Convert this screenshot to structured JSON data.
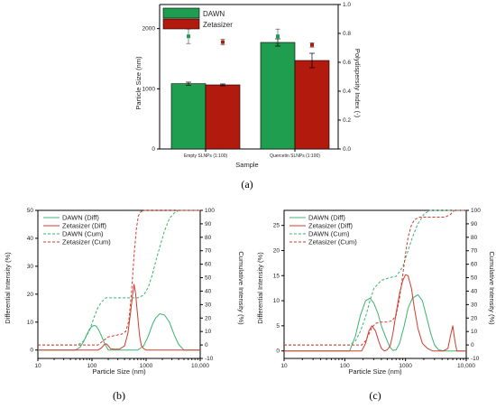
{
  "colors": {
    "dawn": "#1e9e4e",
    "zetasizer": "#b21a0e",
    "dawn_line": "#3cb371",
    "zeta_line": "#d13b2c"
  },
  "panel_labels": [
    "(a)",
    "(b)",
    "(c)"
  ],
  "chart_data": [
    {
      "panel": "(a)",
      "type": "bar",
      "title": "",
      "xlabel": "Sample",
      "ylabel": "Particle Size (nm)",
      "y2label": "Polydispersity Index (-)",
      "categories": [
        "Empty SLNPs (1:100)",
        "Quercetin SLNPs (1:100)"
      ],
      "ylim": [
        0,
        2400
      ],
      "yticks": [
        0,
        1000,
        2000
      ],
      "y2lim": [
        0,
        1.0
      ],
      "y2ticks": [
        "0.0",
        "0.2",
        "0.4",
        "0.6",
        "0.8",
        "1.0"
      ],
      "legend_position": "top-left",
      "series": [
        {
          "name": "DAWN",
          "values": [
            1085,
            1770
          ],
          "errors": [
            25,
            60
          ],
          "pdi": [
            0.78,
            0.78
          ],
          "pdi_errors": [
            0.05,
            0.05
          ]
        },
        {
          "name": "Zetasizer",
          "values": [
            1065,
            1470
          ],
          "errors": [
            15,
            120
          ],
          "pdi": [
            0.74,
            0.72
          ],
          "pdi_errors": [
            0.02,
            0.015
          ]
        }
      ]
    },
    {
      "panel": "(b)",
      "type": "line",
      "xscale": "log",
      "xlim": [
        10,
        10000
      ],
      "xticks": [
        "10",
        "100",
        "1000",
        "10,000"
      ],
      "xlabel": "Particle Size (nm)",
      "ylabel": "Differential Intensity (%)",
      "y2label": "Cumulative Intensity (%)",
      "ylim": [
        -3,
        50
      ],
      "yticks": [
        0,
        10,
        20,
        30,
        40,
        50
      ],
      "y2lim": [
        -10,
        100
      ],
      "y2ticks": [
        -10,
        0,
        10,
        20,
        30,
        40,
        50,
        60,
        70,
        80,
        90,
        100
      ],
      "legend_position": "top-left",
      "series": [
        {
          "name": "DAWN (Diff)",
          "axis": "left",
          "style": "solid",
          "color": "dawn",
          "x": [
            10,
            50,
            60,
            70,
            80,
            90,
            100,
            110,
            120,
            135,
            150,
            170,
            200,
            300,
            500,
            700,
            900,
            1100,
            1300,
            1500,
            1800,
            2200,
            2700,
            3300,
            4000,
            5000,
            10000
          ],
          "y": [
            0,
            0,
            1.0,
            3.0,
            5.5,
            7.5,
            8.5,
            8.8,
            8.5,
            7.0,
            5.0,
            2.5,
            0,
            0,
            0,
            0,
            1.5,
            5.0,
            9.0,
            11.5,
            13.0,
            12.5,
            10.0,
            5.5,
            2.0,
            0,
            0
          ]
        },
        {
          "name": "Zetasizer (Diff)",
          "axis": "left",
          "style": "solid",
          "color": "zetasizer",
          "x": [
            10,
            130,
            150,
            170,
            185,
            200,
            220,
            260,
            320,
            400,
            460,
            520,
            560,
            600,
            640,
            700,
            760,
            820,
            900,
            1000,
            1200,
            10000
          ],
          "y": [
            0,
            0,
            0.8,
            2.0,
            2.2,
            1.5,
            0.5,
            0.3,
            0.3,
            1.5,
            6.0,
            14.0,
            19.5,
            23.5,
            20.0,
            12.0,
            5.0,
            1.5,
            0.5,
            0,
            0,
            0
          ]
        },
        {
          "name": "DAWN (Cum)",
          "axis": "right",
          "style": "dashed",
          "color": "dawn",
          "x": [
            10,
            50,
            60,
            70,
            80,
            90,
            100,
            110,
            130,
            150,
            180,
            200,
            300,
            500,
            700,
            900,
            1100,
            1300,
            1500,
            1800,
            2200,
            2700,
            3300,
            4000,
            5000,
            10000
          ],
          "y": [
            0,
            0,
            1,
            3,
            7,
            11,
            16,
            21,
            28,
            32,
            35,
            35,
            35,
            35,
            35,
            37,
            43,
            52,
            62,
            73,
            85,
            94,
            98,
            100,
            100,
            100
          ]
        },
        {
          "name": "Zetasizer (Cum)",
          "axis": "right",
          "style": "dashed",
          "color": "zetasizer",
          "x": [
            10,
            130,
            160,
            200,
            260,
            350,
            420,
            480,
            540,
            600,
            660,
            720,
            800,
            900,
            1000,
            10000
          ],
          "y": [
            0,
            0,
            3,
            6,
            7,
            8,
            10,
            18,
            40,
            67,
            86,
            96,
            99,
            100,
            100,
            100
          ]
        }
      ]
    },
    {
      "panel": "(c)",
      "type": "line",
      "xscale": "log",
      "xlim": [
        10,
        10000
      ],
      "xticks": [
        "10",
        "100",
        "1000",
        "10,000"
      ],
      "xlabel": "Particle Size (nm)",
      "ylabel": "Differential Intensity (%)",
      "y2label": "Cumulative Intensity (%)",
      "ylim": [
        -1.5,
        28
      ],
      "yticks": [
        0,
        5,
        10,
        15,
        20,
        25
      ],
      "y2lim": [
        -10,
        100
      ],
      "y2ticks": [
        -10,
        0,
        10,
        20,
        30,
        40,
        50,
        60,
        70,
        80,
        90,
        100
      ],
      "legend_position": "top-left",
      "series": [
        {
          "name": "DAWN (Diff)",
          "axis": "left",
          "style": "solid",
          "color": "dawn",
          "x": [
            10,
            120,
            150,
            180,
            220,
            260,
            300,
            350,
            400,
            480,
            550,
            620,
            700,
            800,
            950,
            1100,
            1300,
            1600,
            1900,
            2200,
            2600,
            3000,
            3500,
            4200,
            5000,
            10000
          ],
          "y": [
            0,
            0,
            3.0,
            7.0,
            10.0,
            10.5,
            9.5,
            7.5,
            5.0,
            2.5,
            0.8,
            0.1,
            0.2,
            1.5,
            5.0,
            8.5,
            10.5,
            11.2,
            10.0,
            7.0,
            3.5,
            1.2,
            0.2,
            0,
            0,
            0
          ]
        },
        {
          "name": "Zetasizer (Diff)",
          "axis": "left",
          "style": "solid",
          "color": "zetasizer",
          "x": [
            10,
            190,
            220,
            250,
            280,
            320,
            360,
            400,
            450,
            500,
            560,
            620,
            700,
            800,
            900,
            1000,
            1100,
            1250,
            1400,
            1600,
            1900,
            2300,
            2800,
            3400,
            4200,
            5000,
            5500,
            6000,
            6500,
            7000,
            10000
          ],
          "y": [
            0,
            0,
            1.5,
            4.0,
            5.0,
            4.0,
            2.0,
            0.5,
            0,
            0.2,
            1.0,
            3.5,
            7.5,
            11.5,
            14.0,
            15.2,
            15.0,
            12.5,
            8.5,
            4.5,
            1.5,
            0.5,
            0,
            0,
            0,
            0.5,
            3.0,
            5.0,
            2.0,
            0,
            0
          ]
        },
        {
          "name": "DAWN (Cum)",
          "axis": "right",
          "style": "dashed",
          "color": "dawn",
          "x": [
            10,
            120,
            150,
            180,
            220,
            260,
            300,
            400,
            550,
            700,
            900,
            1100,
            1300,
            1600,
            2000,
            2500,
            3000,
            3500,
            10000
          ],
          "y": [
            0,
            0,
            3,
            10,
            21,
            33,
            42,
            48,
            50,
            51,
            58,
            70,
            80,
            90,
            97,
            100,
            100,
            100,
            100
          ]
        },
        {
          "name": "Zetasizer (Cum)",
          "axis": "right",
          "style": "dashed",
          "color": "zetasizer",
          "x": [
            10,
            190,
            220,
            250,
            280,
            320,
            400,
            500,
            600,
            700,
            800,
            900,
            1000,
            1100,
            1250,
            1400,
            1700,
            2500,
            4500,
            5500,
            6000,
            6500,
            7000,
            10000
          ],
          "y": [
            0,
            0,
            3,
            8,
            13,
            16,
            17,
            17,
            18,
            22,
            35,
            52,
            68,
            80,
            89,
            93,
            95,
            95,
            95,
            97,
            99,
            100,
            100,
            100
          ]
        }
      ]
    }
  ]
}
